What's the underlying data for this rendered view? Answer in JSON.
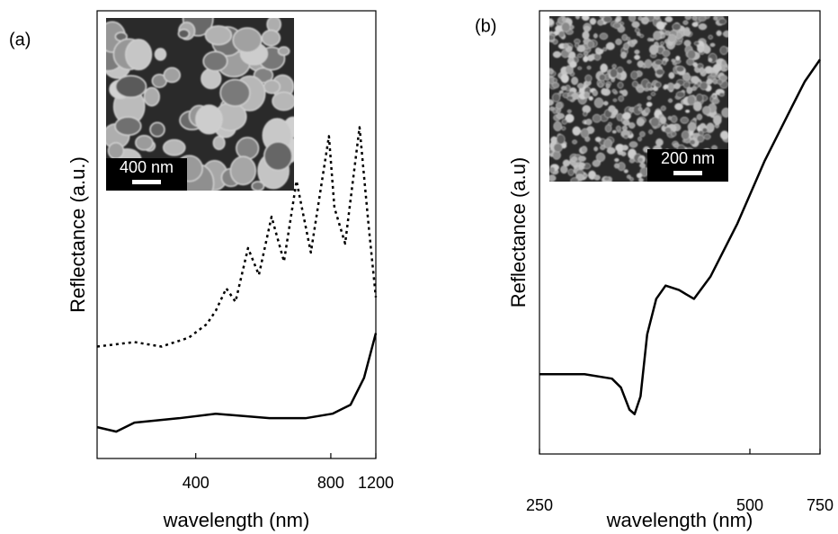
{
  "chart_data": [
    {
      "type": "line",
      "panel_label": "(a)",
      "x_label": "wavelength (nm)",
      "y_label": "Reflectance (a.u.)",
      "inset_scale_label": "400 nm",
      "xscale": "reciprocal",
      "xlim": [
        293,
        1200
      ],
      "xticks": [
        400,
        800,
        1200
      ],
      "ylim": [
        0,
        1
      ],
      "series": [
        {
          "name": "solid",
          "color": "#000000",
          "dash": "solid",
          "x": [
            293,
            309,
            326,
            377,
            432,
            550,
            674,
            810,
            937,
            1061,
            1200
          ],
          "values": [
            0.07,
            0.06,
            0.08,
            0.09,
            0.1,
            0.09,
            0.09,
            0.1,
            0.12,
            0.18,
            0.28
          ]
        },
        {
          "name": "dotted",
          "color": "#000000",
          "dash": "dotted",
          "x": [
            293,
            326,
            355,
            390,
            417,
            432,
            451,
            469,
            496,
            522,
            556,
            594,
            638,
            697,
            789,
            822,
            895,
            1016,
            1111,
            1200
          ],
          "values": [
            0.25,
            0.26,
            0.25,
            0.27,
            0.3,
            0.33,
            0.38,
            0.35,
            0.47,
            0.41,
            0.54,
            0.44,
            0.62,
            0.46,
            0.72,
            0.56,
            0.48,
            0.74,
            0.52,
            0.36
          ]
        }
      ]
    },
    {
      "type": "line",
      "panel_label": "(b)",
      "x_label": "wavelength (nm)",
      "y_label": "Reflectance (a.u)",
      "inset_scale_label": "200 nm",
      "xscale": "reciprocal",
      "xlim": [
        250,
        750
      ],
      "xticks": [
        250,
        500,
        750
      ],
      "ylim": [
        0,
        1
      ],
      "series": [
        {
          "name": "solid",
          "color": "#000000",
          "dash": "solid",
          "x": [
            250,
            280,
            302,
            310,
            318,
            323,
            329,
            336,
            346,
            357,
            374,
            395,
            421,
            472,
            537,
            622,
            676,
            750
          ],
          "values": [
            0.18,
            0.18,
            0.17,
            0.15,
            0.1,
            0.09,
            0.13,
            0.27,
            0.35,
            0.38,
            0.37,
            0.35,
            0.4,
            0.52,
            0.66,
            0.78,
            0.84,
            0.89
          ]
        }
      ]
    }
  ]
}
